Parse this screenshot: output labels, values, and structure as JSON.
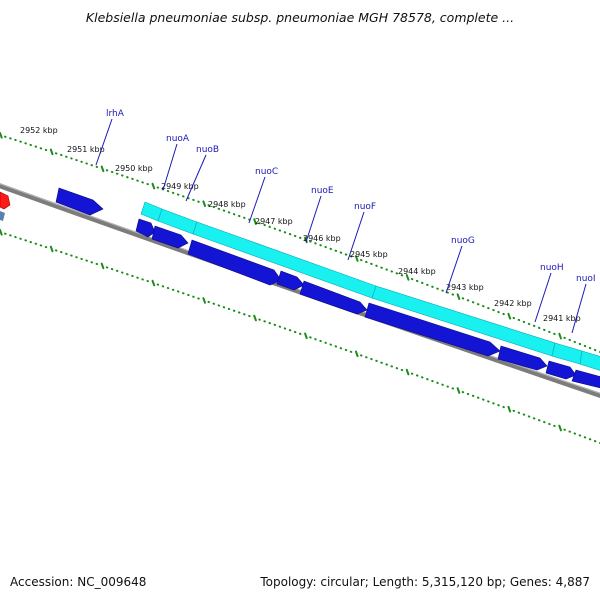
{
  "title": "Klebsiella pneumoniae subsp. pneumoniae MGH 78578, complete ...",
  "footer": {
    "accession": "Accession: NC_009648",
    "summary": "Topology: circular; Length: 5,315,120 bp; Genes: 4,887"
  },
  "colors": {
    "cds": "#1414d4",
    "operon": "#19f0f0",
    "backbone": "#7c7c7c",
    "ticks": "#1a8c1a",
    "labels": "#1a1ab8",
    "highlight": "#ff1a1a"
  },
  "ticks": [
    {
      "label": "2952 kbp"
    },
    {
      "label": "2951 kbp"
    },
    {
      "label": "2950 kbp"
    },
    {
      "label": "2949 kbp"
    },
    {
      "label": "2948 kbp"
    },
    {
      "label": "2947 kbp"
    },
    {
      "label": "2946 kbp"
    },
    {
      "label": "2945 kbp"
    },
    {
      "label": "2944 kbp"
    },
    {
      "label": "2943 kbp"
    },
    {
      "label": "2942 kbp"
    },
    {
      "label": "2941 kbp"
    }
  ],
  "genes": [
    {
      "name": "lrhA"
    },
    {
      "name": "nuoA"
    },
    {
      "name": "nuoB"
    },
    {
      "name": "nuoC"
    },
    {
      "name": "nuoE"
    },
    {
      "name": "nuoF"
    },
    {
      "name": "nuoG"
    },
    {
      "name": "nuoH"
    },
    {
      "name": "nuoI"
    }
  ]
}
